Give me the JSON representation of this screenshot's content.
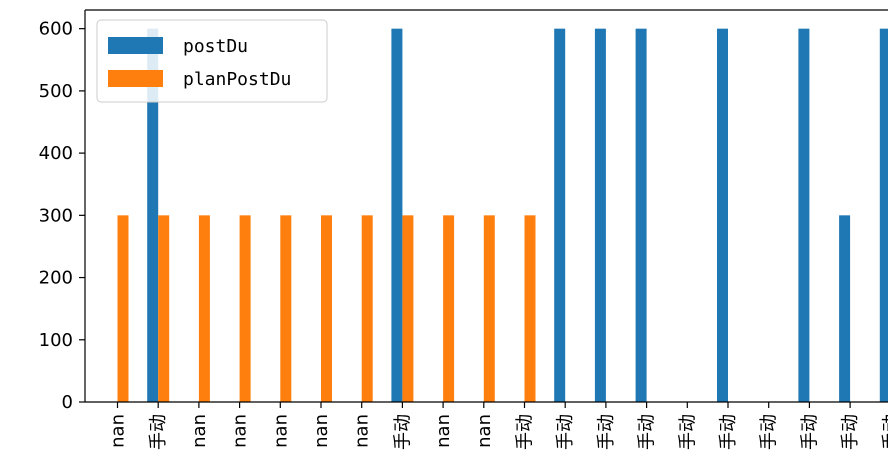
{
  "chart_data": {
    "type": "bar",
    "categories": [
      "nan",
      "手动",
      "nan",
      "nan",
      "nan",
      "nan",
      "nan",
      "手动",
      "nan",
      "nan",
      "手动",
      "手动",
      "手动",
      "手动",
      "手动",
      "手动",
      "手动",
      "手动",
      "手动",
      "手动"
    ],
    "series": [
      {
        "name": "postDu",
        "color": "#1f77b4",
        "values": [
          null,
          600,
          null,
          null,
          null,
          null,
          null,
          600,
          null,
          null,
          null,
          600,
          600,
          600,
          null,
          600,
          null,
          600,
          300,
          600
        ]
      },
      {
        "name": "planPostDu",
        "color": "#ff7f0e",
        "values": [
          300,
          300,
          300,
          300,
          300,
          300,
          300,
          300,
          300,
          300,
          300,
          null,
          null,
          null,
          null,
          null,
          null,
          null,
          null,
          null
        ]
      }
    ],
    "ylim": [
      0,
      630
    ],
    "yticks": [
      0,
      100,
      200,
      300,
      400,
      500,
      600
    ],
    "legend_position": "top-left",
    "grid": false
  }
}
